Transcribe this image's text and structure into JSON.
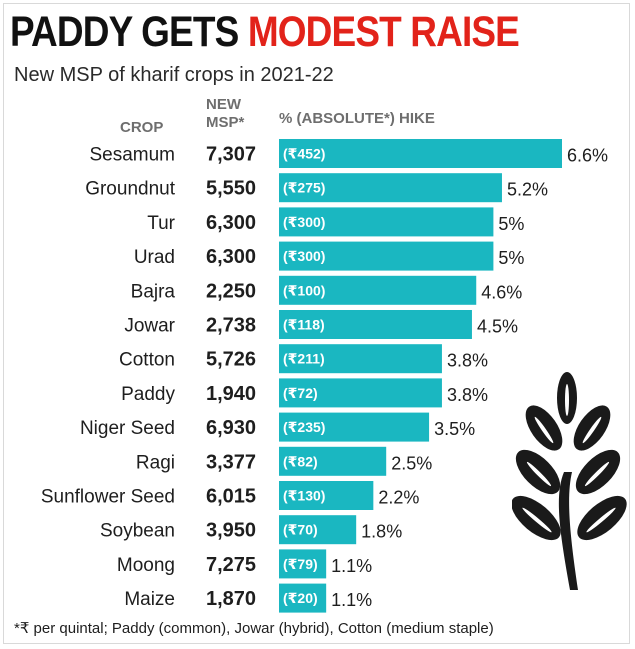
{
  "header": {
    "title_part1": "PADDY GETS",
    "title_part2": "MODEST RAISE",
    "subtitle": "New MSP of kharif crops in 2021-22"
  },
  "columns": {
    "crop": "CROP",
    "msp": "NEW MSP*",
    "hike": "% (ABSOLUTE*) HIKE"
  },
  "colors": {
    "bar": "#1ab7c1",
    "title_red": "#e2231a",
    "header_gray": "#6e6e6e"
  },
  "chart_data": {
    "type": "bar",
    "orientation": "horizontal",
    "title": "PADDY GETS MODEST RAISE",
    "subtitle": "New MSP of kharif crops in 2021-22",
    "categories": [
      "Sesamum",
      "Groundnut",
      "Tur",
      "Urad",
      "Bajra",
      "Jowar",
      "Cotton",
      "Paddy",
      "Niger Seed",
      "Ragi",
      "Sunflower Seed",
      "Soybean",
      "Moong",
      "Maize"
    ],
    "msp": [
      "7,307",
      "5,550",
      "6,300",
      "6,300",
      "2,250",
      "2,738",
      "5,726",
      "1,940",
      "6,930",
      "3,377",
      "6,015",
      "3,950",
      "7,275",
      "1,870"
    ],
    "values": [
      6.6,
      5.2,
      5,
      5,
      4.6,
      4.5,
      3.8,
      3.8,
      3.5,
      2.5,
      2.2,
      1.8,
      1.1,
      1.1
    ],
    "value_labels": [
      "6.6%",
      "5.2%",
      "5%",
      "5%",
      "4.6%",
      "4.5%",
      "3.8%",
      "3.8%",
      "3.5%",
      "2.5%",
      "2.2%",
      "1.8%",
      "1.1%",
      "1.1%"
    ],
    "absolute_labels": [
      "(₹452)",
      "(₹275)",
      "(₹300)",
      "(₹300)",
      "(₹100)",
      "(₹118)",
      "(₹211)",
      "(₹72)",
      "(₹235)",
      "(₹82)",
      "(₹130)",
      "(₹70)",
      "(₹79)",
      "(₹20)"
    ],
    "xlim": [
      0,
      6.6
    ],
    "xlabel": "% (ABSOLUTE*) HIKE",
    "ylabel": "CROP"
  },
  "footnote": "*₹ per quintal; Paddy (common), Jowar (hybrid), Cotton (medium staple)",
  "icons": {
    "decoration": "wheat-icon"
  }
}
